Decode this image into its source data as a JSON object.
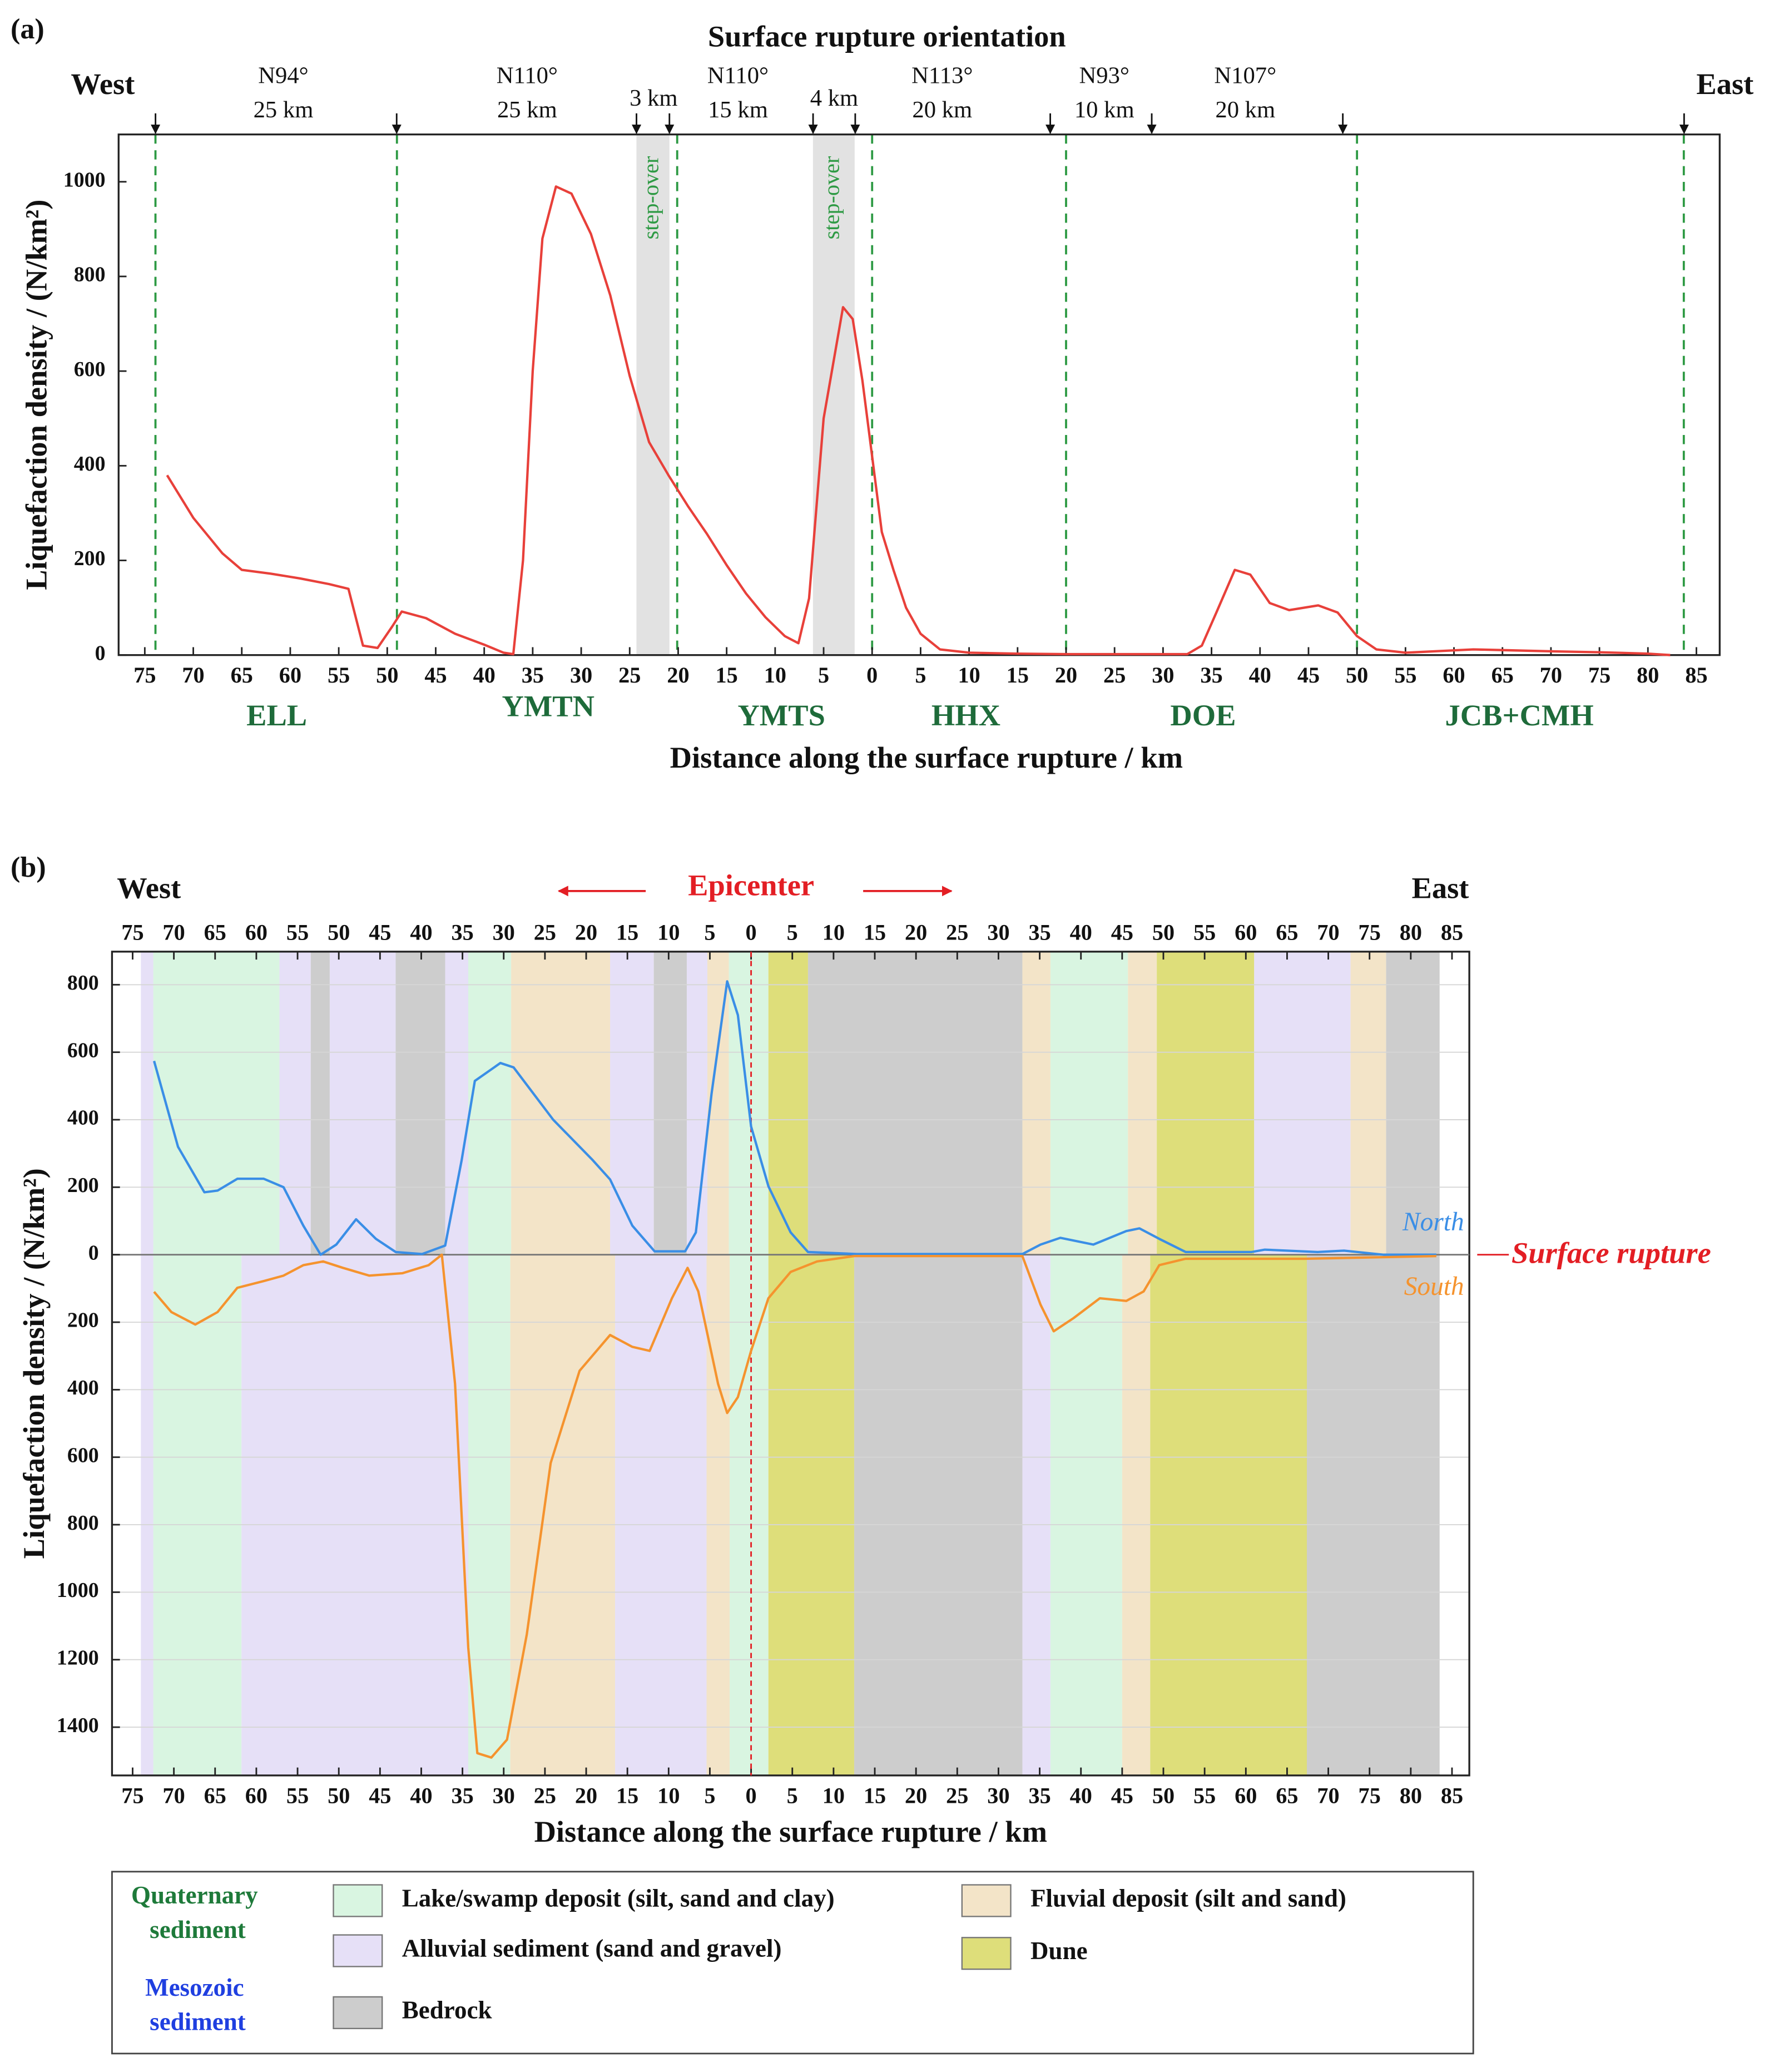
{
  "chart_data": [
    {
      "type": "line",
      "panel": "(a)",
      "title": "Surface rupture orientation",
      "west": "West",
      "east": "East",
      "x_label": "Distance along the surface rupture / km",
      "y_label": "Liquefaction density / (N/km²)",
      "xlim": [
        -77.7,
        87.4
      ],
      "xticks": [
        {
          "value": -75,
          "label": "75"
        },
        {
          "value": -70,
          "label": "70"
        },
        {
          "value": -65,
          "label": "65"
        },
        {
          "value": -60,
          "label": "60"
        },
        {
          "value": -55,
          "label": "55"
        },
        {
          "value": -50,
          "label": "50"
        },
        {
          "value": -45,
          "label": "45"
        },
        {
          "value": -40,
          "label": "40"
        },
        {
          "value": -35,
          "label": "35"
        },
        {
          "value": -30,
          "label": "30"
        },
        {
          "value": -25,
          "label": "25"
        },
        {
          "value": -20,
          "label": "20"
        },
        {
          "value": -15,
          "label": "15"
        },
        {
          "value": -10,
          "label": "10"
        },
        {
          "value": -5,
          "label": "5"
        },
        0,
        5,
        10,
        15,
        20,
        25,
        30,
        35,
        40,
        45,
        50,
        55,
        60,
        65,
        70,
        75,
        80,
        85
      ],
      "ylim": [
        0,
        1100
      ],
      "yticks": [
        0,
        200,
        400,
        600,
        800,
        1000
      ],
      "series": [
        {
          "color": "#e8403a",
          "x": [
            -72.7,
            -70,
            -67,
            -65,
            -62,
            -59,
            -56,
            -54,
            -52.5,
            -51,
            -49.5,
            -48.5,
            -46,
            -43,
            -40,
            -38,
            -37,
            -36,
            -35,
            -34,
            -32.6,
            -31,
            -29,
            -27,
            -25,
            -23,
            -21,
            -19,
            -17,
            -15,
            -13,
            -11,
            -9,
            -7.6,
            -6.5,
            -5,
            -3,
            -2,
            -1,
            0,
            1,
            2.2,
            3.5,
            5,
            7,
            10,
            15,
            20,
            25,
            30,
            32.5,
            34,
            35.5,
            37.4,
            39,
            41,
            43,
            46,
            48,
            50,
            52,
            55,
            58,
            62,
            66,
            70,
            75,
            80,
            82.3
          ],
          "values": [
            380,
            290,
            215,
            180,
            172,
            162,
            150,
            140,
            20,
            15,
            60,
            92,
            78,
            45,
            22,
            5,
            2,
            200,
            600,
            880,
            990,
            975,
            890,
            760,
            590,
            450,
            380,
            315,
            255,
            190,
            130,
            80,
            40,
            25,
            120,
            500,
            735,
            710,
            580,
            420,
            260,
            180,
            100,
            45,
            12,
            5,
            3,
            2,
            2,
            2,
            2,
            20,
            90,
            180,
            170,
            110,
            95,
            105,
            90,
            40,
            12,
            5,
            8,
            12,
            10,
            8,
            6,
            3,
            0
          ]
        }
      ],
      "segment_boundaries": [
        -73.9,
        -49.0,
        -20.1,
        0,
        20.0,
        50.0,
        83.7
      ],
      "boundary_color": "#2e9a44",
      "step_overs": [
        {
          "label": "step-over",
          "range": [
            -24.3,
            -20.9
          ]
        },
        {
          "label": "step-over",
          "range": [
            -6.1,
            -1.8
          ]
        }
      ],
      "orientations": [
        {
          "azimuth": "N94°",
          "length": "25 km"
        },
        {
          "azimuth": "N110°",
          "length": "25 km"
        },
        {
          "azimuth": "N110°",
          "length": "15 km"
        },
        {
          "azimuth": "N113°",
          "length": "20 km"
        },
        {
          "azimuth": "N93°",
          "length": "10 km"
        },
        {
          "azimuth": "N107°",
          "length": "20 km"
        }
      ],
      "step_widths": [
        "3 km",
        "4 km"
      ],
      "segments": [
        "ELL",
        "YMTN",
        "YMTS",
        "HHX",
        "DOE",
        "JCB+CMH"
      ],
      "segment_color": "#1e6b3a"
    },
    {
      "type": "line",
      "panel": "(b)",
      "west": "West",
      "east": "East",
      "epicenter": "Epicenter",
      "epicenter_color": "#e31e24",
      "rupture_label": "Surface rupture",
      "x_label": "Distance along the surface rupture / km",
      "y_label": "Liquefaction density / (N/km²)",
      "xlim": [
        -77.5,
        87.1
      ],
      "top_axis": true,
      "grid": true,
      "xticks": [
        {
          "value": -75,
          "label": "75"
        },
        {
          "value": -70,
          "label": "70"
        },
        {
          "value": -65,
          "label": "65"
        },
        {
          "value": -60,
          "label": "60"
        },
        {
          "value": -55,
          "label": "55"
        },
        {
          "value": -50,
          "label": "50"
        },
        {
          "value": -45,
          "label": "45"
        },
        {
          "value": -40,
          "label": "40"
        },
        {
          "value": -35,
          "label": "35"
        },
        {
          "value": -30,
          "label": "30"
        },
        {
          "value": -25,
          "label": "25"
        },
        {
          "value": -20,
          "label": "20"
        },
        {
          "value": -15,
          "label": "15"
        },
        {
          "value": -10,
          "label": "10"
        },
        {
          "value": -5,
          "label": "5"
        },
        0,
        5,
        10,
        15,
        20,
        25,
        30,
        35,
        40,
        45,
        50,
        55,
        60,
        65,
        70,
        75,
        80,
        85
      ],
      "ylim": [
        -1543,
        898
      ],
      "yticks": [
        {
          "value": -1400,
          "label": "1400"
        },
        {
          "value": -1200,
          "label": "1200"
        },
        {
          "value": -1000,
          "label": "1000"
        },
        {
          "value": -800,
          "label": "800"
        },
        {
          "value": -600,
          "label": "600"
        },
        {
          "value": -400,
          "label": "400"
        },
        {
          "value": -200,
          "label": "200"
        },
        0,
        200,
        400,
        600,
        800
      ],
      "series": [
        {
          "name": "North",
          "color": "#3a8ee6",
          "x": [
            -72.4,
            -69.5,
            -66.3,
            -64.7,
            -62.3,
            -59.1,
            -56.7,
            -54.3,
            -52.2,
            -50.3,
            -47.9,
            -45.5,
            -43.1,
            -39.9,
            -37.1,
            -35.1,
            -33.5,
            -30.4,
            -28.8,
            -24,
            -19.2,
            -17.1,
            -14.4,
            -11.7,
            -8,
            -6.7,
            -4.8,
            -2.9,
            -1.6,
            0,
            2.1,
            4.8,
            6.9,
            12.8,
            32.9,
            35.1,
            37.5,
            41.5,
            45.5,
            47.1,
            49.5,
            52.7,
            60.7,
            62.3,
            68.7,
            71.9,
            76.7,
            83.1
          ],
          "values": [
            574,
            320,
            185,
            190,
            225,
            225,
            200,
            86,
            0,
            30,
            105,
            47,
            8,
            2,
            27,
            280,
            515,
            568,
            555,
            400,
            280,
            223,
            86,
            10,
            10,
            66,
            476,
            810,
            710,
            380,
            203,
            66,
            8,
            2,
            2,
            30,
            50,
            30,
            70,
            78,
            47,
            8,
            8,
            15,
            8,
            12,
            0,
            0
          ]
        },
        {
          "name": "South",
          "color": "#f5932e",
          "x": [
            -72.4,
            -70.3,
            -67.4,
            -64.7,
            -62.3,
            -59.1,
            -56.7,
            -54.3,
            -51.9,
            -49.5,
            -46.3,
            -42.3,
            -39.1,
            -37.5,
            -35.9,
            -34.3,
            -33.2,
            -31.5,
            -29.6,
            -27.2,
            -24.3,
            -20.8,
            -17.1,
            -14.4,
            -12.3,
            -9.6,
            -7.7,
            -6.4,
            -4,
            -2.9,
            -1.6,
            0,
            2.1,
            4.8,
            8,
            12.5,
            32.9,
            35.1,
            36.7,
            39.1,
            42.3,
            45.5,
            47.6,
            49.5,
            52.7,
            67.1,
            83.1
          ],
          "values": [
            -110,
            -170,
            -207,
            -170,
            -98,
            -78,
            -62,
            -31,
            -20,
            -39,
            -62,
            -55,
            -31,
            0,
            -383,
            -1164,
            -1477,
            -1490,
            -1437,
            -1125,
            -617,
            -344,
            -238,
            -273,
            -285,
            -129,
            -39,
            -109,
            -383,
            -469,
            -422,
            -285,
            -129,
            -51,
            -20,
            -4,
            -4,
            -148,
            -227,
            -188,
            -129,
            -137,
            -109,
            -31,
            -12,
            -12,
            -4
          ]
        }
      ],
      "legend": {
        "groups": [
          {
            "label": "Quaternary sediment",
            "color": "#1e7a3a"
          },
          {
            "label": "Mesozoic sediment",
            "color": "#1f3fe0"
          }
        ],
        "items": [
          {
            "label": "Lake/swamp deposit (silt, sand and clay)",
            "color": "#d9f5e1",
            "north": [
              [
                -72.5,
                -57.2
              ],
              [
                -34.3,
                -29.1
              ],
              [
                -2.7,
                2.1
              ],
              [
                36.3,
                45.7
              ]
            ],
            "south": [
              [
                -72.5,
                -61.8
              ],
              [
                -34.3,
                -29.2
              ],
              [
                -2.6,
                2.1
              ],
              [
                36.3,
                45.0
              ]
            ]
          },
          {
            "label": "Alluvial sediment (sand and gravel)",
            "color": "#e6e0f7",
            "north": [
              [
                -74.0,
                -72.5
              ],
              [
                -57.2,
                -53.4
              ],
              [
                -51.1,
                -43.1
              ],
              [
                -37.1,
                -34.3
              ],
              [
                -17.1,
                -11.8
              ],
              [
                -7.8,
                -5.3
              ],
              [
                61.0,
                72.7
              ]
            ],
            "south": [
              [
                -74.0,
                -72.5
              ],
              [
                -61.8,
                -34.3
              ],
              [
                -16.5,
                -5.4
              ],
              [
                32.9,
                36.3
              ]
            ]
          },
          {
            "label": "Bedrock",
            "color": "#cdcdcd",
            "north": [
              [
                -53.4,
                -51.1
              ],
              [
                -43.1,
                -37.1
              ],
              [
                -11.8,
                -7.8
              ],
              [
                6.9,
                32.9
              ],
              [
                77.0,
                83.5
              ]
            ],
            "south": [
              [
                12.5,
                32.9
              ],
              [
                67.4,
                83.5
              ]
            ]
          },
          {
            "label": "Fluvial deposit (silt and sand)",
            "color": "#f3e4c8",
            "north": [
              [
                -29.1,
                -17.1
              ],
              [
                -5.3,
                -2.7
              ],
              [
                32.9,
                36.3
              ],
              [
                45.7,
                49.2
              ],
              [
                72.7,
                77.0
              ]
            ],
            "south": [
              [
                -29.2,
                -16.5
              ],
              [
                -5.4,
                -2.6
              ],
              [
                45.0,
                48.4
              ]
            ]
          },
          {
            "label": "Dune",
            "color": "#dede7a",
            "north": [
              [
                2.1,
                6.9
              ],
              [
                49.2,
                61.0
              ]
            ],
            "south": [
              [
                2.1,
                12.5
              ],
              [
                48.4,
                67.4
              ]
            ]
          }
        ]
      }
    }
  ]
}
